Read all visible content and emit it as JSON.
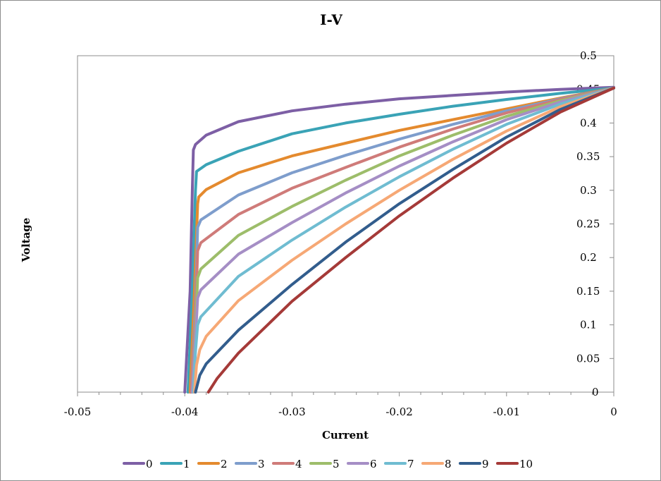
{
  "chart_data": {
    "type": "line",
    "title": "I-V",
    "xlabel": "Current",
    "ylabel": "Voltage",
    "xlim": [
      -0.05,
      0
    ],
    "ylim": [
      0,
      0.5
    ],
    "x_ticks": [
      "-0.05",
      "-0.04",
      "-0.03",
      "-0.02",
      "-0.01",
      "0"
    ],
    "y_ticks": [
      "0",
      "0.05",
      "0.1",
      "0.15",
      "0.2",
      "0.25",
      "0.3",
      "0.35",
      "0.4",
      "0.45",
      "0.5"
    ],
    "grid": false,
    "legend_position": "bottom",
    "series": [
      {
        "name": "0",
        "color": "#7d5fa5",
        "x": [
          -0.04,
          -0.0395,
          -0.0393,
          -0.0392,
          -0.039,
          -0.0385,
          -0.038,
          -0.035,
          -0.03,
          -0.025,
          -0.02,
          -0.015,
          -0.01,
          -0.005,
          0
        ],
        "y": [
          0,
          0.15,
          0.3,
          0.36,
          0.368,
          0.375,
          0.382,
          0.402,
          0.418,
          0.428,
          0.436,
          0.441,
          0.446,
          0.45,
          0.453
        ]
      },
      {
        "name": "1",
        "color": "#3aa3b6",
        "x": [
          -0.0397,
          -0.0393,
          -0.039,
          -0.0389,
          -0.038,
          -0.035,
          -0.03,
          -0.025,
          -0.02,
          -0.015,
          -0.01,
          -0.005,
          0
        ],
        "y": [
          0,
          0.15,
          0.3,
          0.328,
          0.338,
          0.358,
          0.384,
          0.4,
          0.413,
          0.425,
          0.435,
          0.444,
          0.452
        ]
      },
      {
        "name": "2",
        "color": "#e48a2e",
        "x": [
          -0.0395,
          -0.0391,
          -0.0388,
          -0.0387,
          -0.038,
          -0.035,
          -0.03,
          -0.025,
          -0.02,
          -0.015,
          -0.01,
          -0.005,
          0
        ],
        "y": [
          0,
          0.15,
          0.28,
          0.29,
          0.301,
          0.326,
          0.351,
          0.37,
          0.389,
          0.405,
          0.421,
          0.437,
          0.452
        ]
      },
      {
        "name": "3",
        "color": "#7e9dcc",
        "x": [
          -0.0394,
          -0.039,
          -0.0388,
          -0.0385,
          -0.035,
          -0.03,
          -0.025,
          -0.02,
          -0.015,
          -0.01,
          -0.005,
          0
        ],
        "y": [
          0,
          0.13,
          0.245,
          0.256,
          0.293,
          0.326,
          0.352,
          0.376,
          0.398,
          0.418,
          0.436,
          0.452
        ]
      },
      {
        "name": "4",
        "color": "#cf7b79",
        "x": [
          -0.0394,
          -0.039,
          -0.0388,
          -0.0385,
          -0.035,
          -0.03,
          -0.025,
          -0.02,
          -0.015,
          -0.01,
          -0.005,
          0
        ],
        "y": [
          0,
          0.11,
          0.21,
          0.222,
          0.264,
          0.303,
          0.334,
          0.364,
          0.391,
          0.415,
          0.435,
          0.452
        ]
      },
      {
        "name": "5",
        "color": "#9dbd6a",
        "x": [
          -0.0393,
          -0.039,
          -0.0388,
          -0.0385,
          -0.035,
          -0.03,
          -0.025,
          -0.02,
          -0.015,
          -0.01,
          -0.005,
          0
        ],
        "y": [
          0,
          0.09,
          0.17,
          0.183,
          0.233,
          0.276,
          0.315,
          0.351,
          0.382,
          0.41,
          0.433,
          0.452
        ]
      },
      {
        "name": "6",
        "color": "#a58ec5",
        "x": [
          -0.0393,
          -0.039,
          -0.0388,
          -0.0385,
          -0.035,
          -0.03,
          -0.025,
          -0.02,
          -0.015,
          -0.01,
          -0.005,
          0
        ],
        "y": [
          0,
          0.08,
          0.14,
          0.152,
          0.205,
          0.252,
          0.296,
          0.336,
          0.372,
          0.405,
          0.431,
          0.452
        ]
      },
      {
        "name": "7",
        "color": "#6fbcd1",
        "x": [
          -0.0392,
          -0.039,
          -0.0388,
          -0.0385,
          -0.035,
          -0.03,
          -0.025,
          -0.02,
          -0.015,
          -0.01,
          -0.005,
          0
        ],
        "y": [
          0,
          0.06,
          0.1,
          0.112,
          0.172,
          0.226,
          0.275,
          0.32,
          0.361,
          0.398,
          0.428,
          0.452
        ]
      },
      {
        "name": "8",
        "color": "#f6a875",
        "x": [
          -0.0391,
          -0.0389,
          -0.0386,
          -0.038,
          -0.035,
          -0.03,
          -0.025,
          -0.02,
          -0.015,
          -0.01,
          -0.005,
          0
        ],
        "y": [
          0,
          0.04,
          0.063,
          0.083,
          0.136,
          0.196,
          0.25,
          0.3,
          0.346,
          0.388,
          0.424,
          0.452
        ]
      },
      {
        "name": "9",
        "color": "#325d8d",
        "x": [
          -0.039,
          -0.0386,
          -0.038,
          -0.035,
          -0.03,
          -0.025,
          -0.02,
          -0.015,
          -0.01,
          -0.005,
          0
        ],
        "y": [
          0,
          0.025,
          0.042,
          0.092,
          0.16,
          0.223,
          0.28,
          0.331,
          0.379,
          0.42,
          0.452
        ]
      },
      {
        "name": "10",
        "color": "#a53a38",
        "x": [
          -0.0378,
          -0.037,
          -0.035,
          -0.03,
          -0.025,
          -0.02,
          -0.015,
          -0.01,
          -0.005,
          0
        ],
        "y": [
          0,
          0.02,
          0.058,
          0.135,
          0.2,
          0.262,
          0.318,
          0.37,
          0.416,
          0.452
        ]
      }
    ]
  }
}
